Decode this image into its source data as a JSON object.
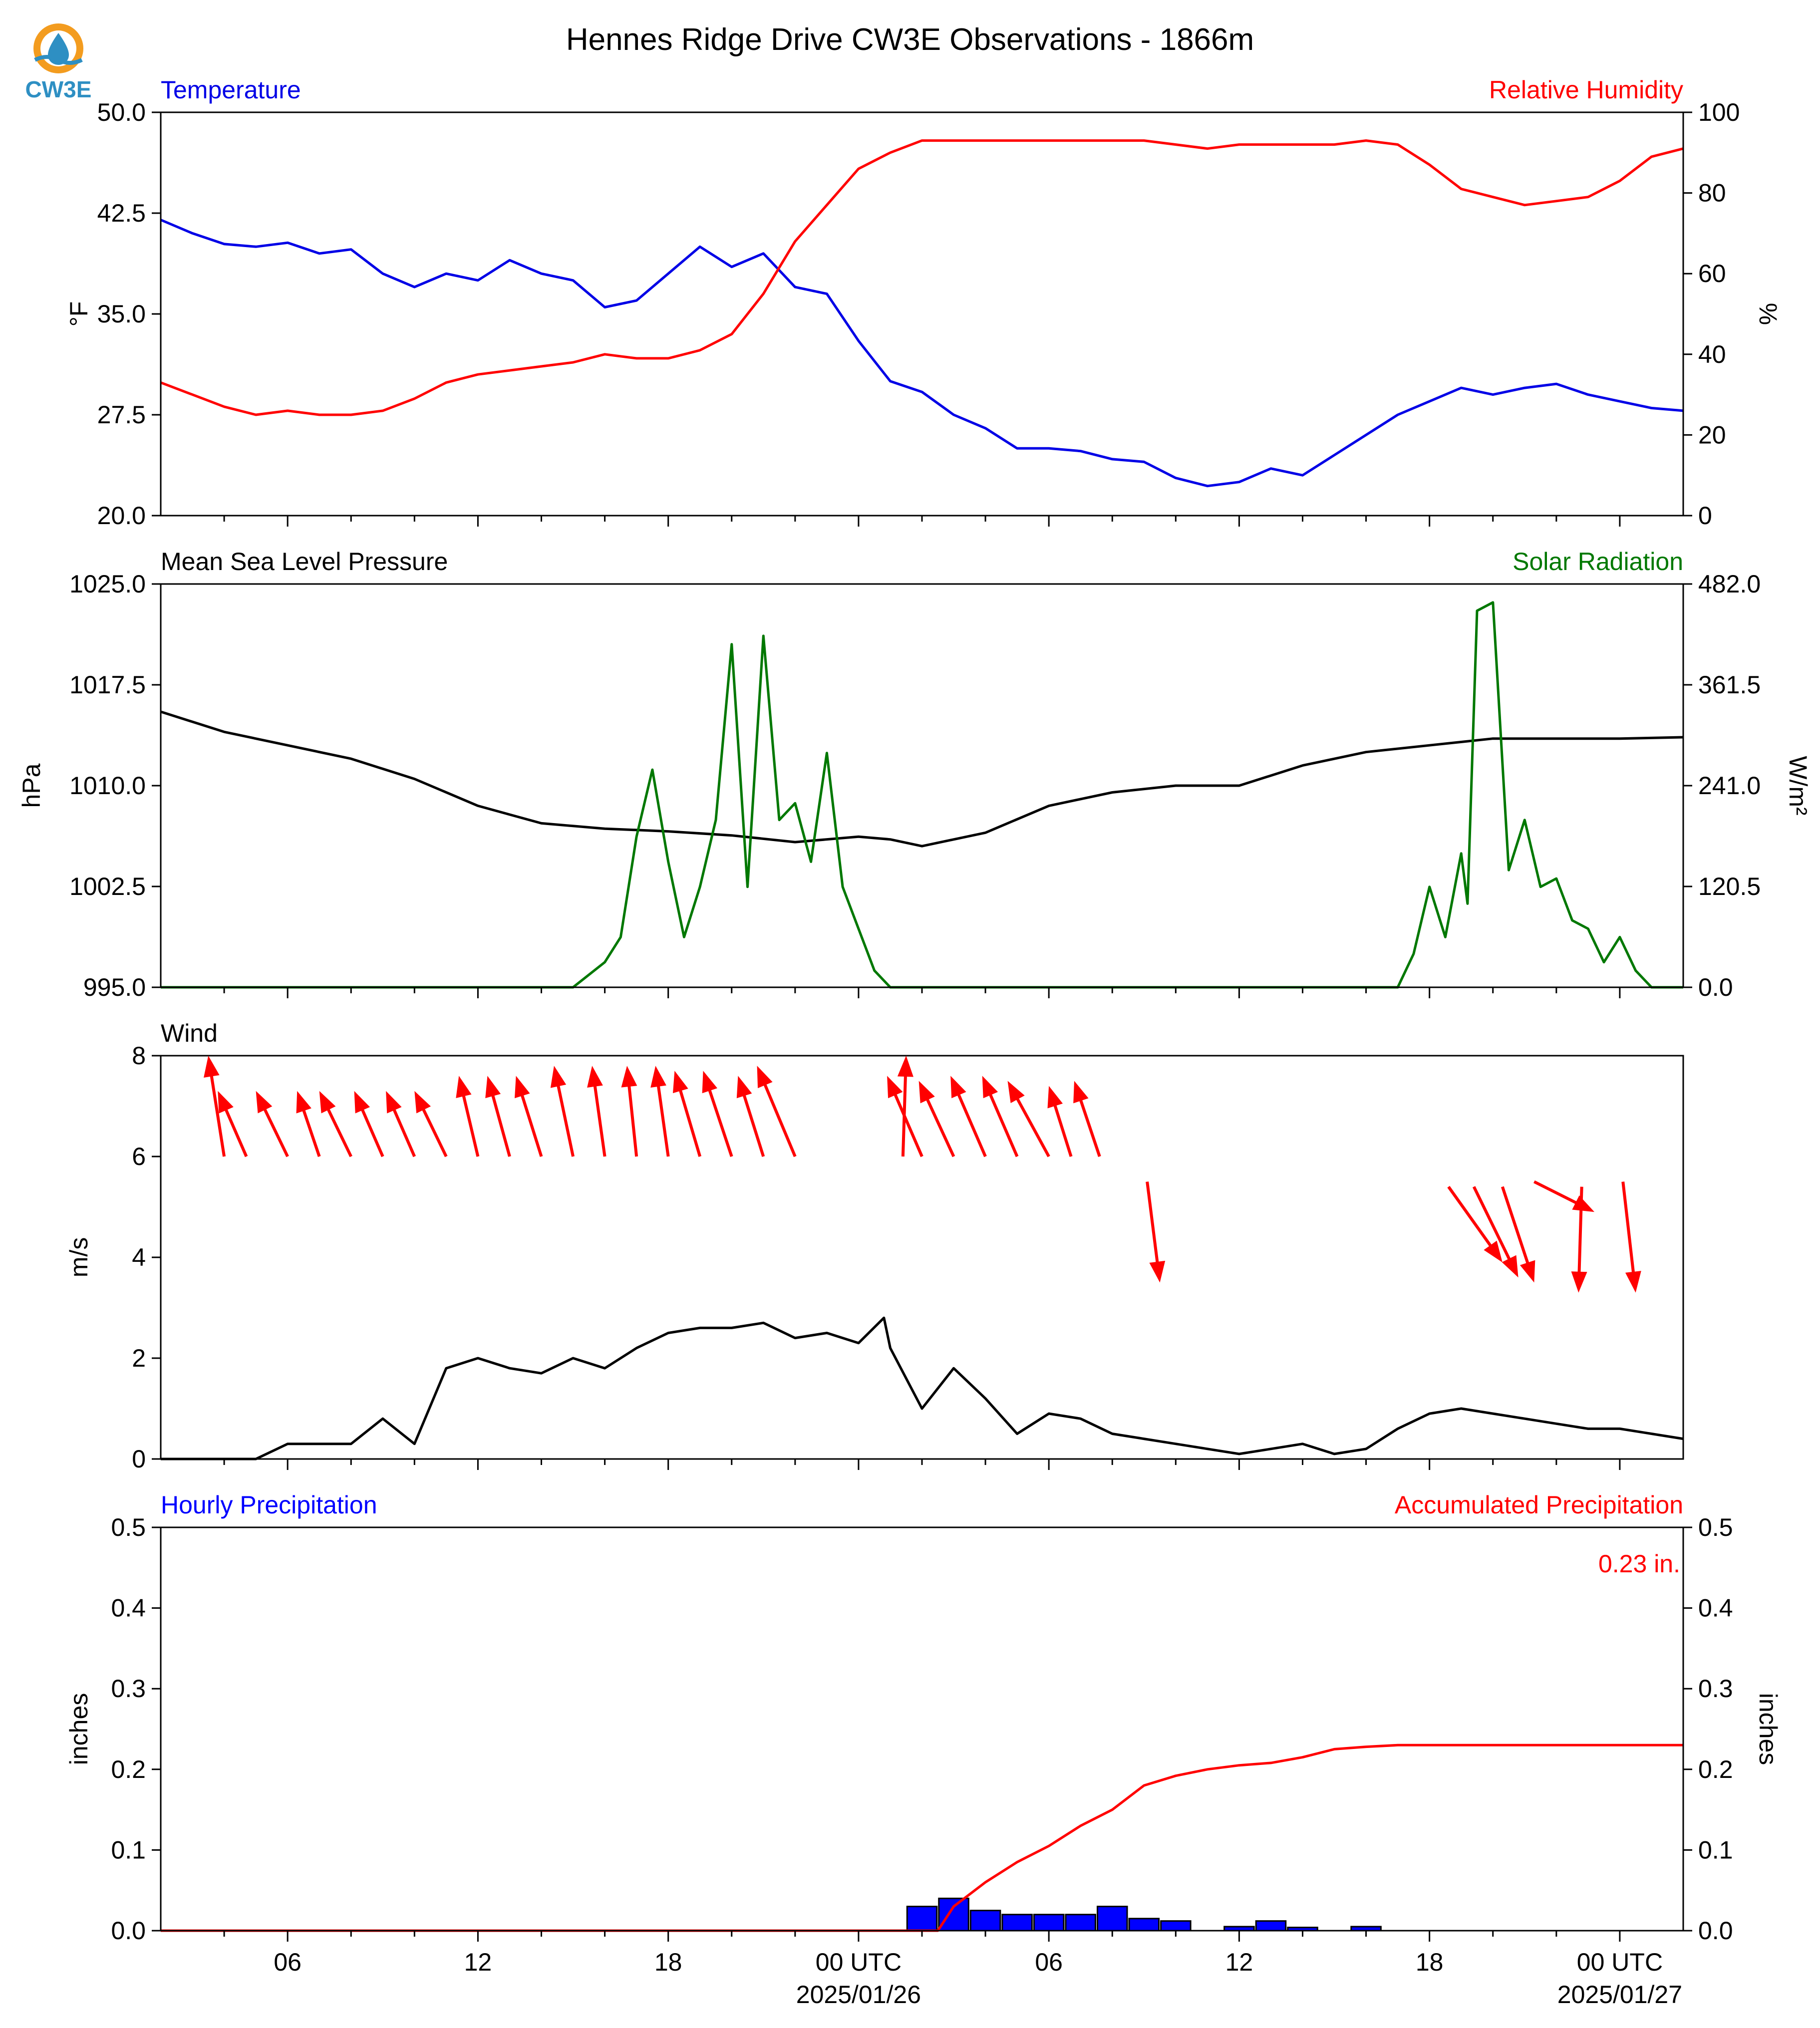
{
  "title": "Hennes Ridge Drive CW3E Observations - 1866m",
  "logo": {
    "text": "CW3E",
    "colors": {
      "ring": "#f39c1f",
      "drop": "#2e8fc3",
      "text": "#2e8fc3"
    }
  },
  "x_axis": {
    "range_hours": [
      -22,
      26
    ],
    "ticks": [
      {
        "hour": -18,
        "label": "06",
        "label2": ""
      },
      {
        "hour": -12,
        "label": "12",
        "label2": ""
      },
      {
        "hour": -6,
        "label": "18",
        "label2": ""
      },
      {
        "hour": 0,
        "label": "00 UTC",
        "label2": "2025/01/26"
      },
      {
        "hour": 6,
        "label": "06",
        "label2": ""
      },
      {
        "hour": 12,
        "label": "12",
        "label2": ""
      },
      {
        "hour": 18,
        "label": "18",
        "label2": ""
      },
      {
        "hour": 24,
        "label": "00 UTC",
        "label2": "2025/01/27"
      }
    ]
  },
  "colors": {
    "temperature": "#0000e6",
    "humidity": "#ff0000",
    "pressure": "#000000",
    "solar": "#007800",
    "wind": "#000000",
    "arrows": "#ff0000",
    "hourly": "#0000ff",
    "accum": "#ff0000"
  },
  "chart_data": [
    {
      "type": "line",
      "left_label": "Temperature",
      "right_label": "Relative Humidity",
      "ylabel_left": "°F",
      "ylabel_right": "%",
      "ylim_left": [
        20.0,
        50.0
      ],
      "ylim_right": [
        0,
        100
      ],
      "yticks_left": [
        "20.0",
        "27.5",
        "35.0",
        "42.5",
        "50.0"
      ],
      "yticks_right": [
        "0",
        "20",
        "40",
        "60",
        "80",
        "100"
      ],
      "series": [
        {
          "name": "Temperature",
          "axis": "left",
          "x": [
            -22,
            -21,
            -20,
            -19,
            -18,
            -17,
            -16,
            -15,
            -14,
            -13,
            -12,
            -11,
            -10,
            -9,
            -8,
            -7,
            -6,
            -5,
            -4,
            -3,
            -2,
            -1,
            0,
            1,
            2,
            3,
            4,
            5,
            6,
            7,
            8,
            9,
            10,
            11,
            12,
            13,
            14,
            15,
            16,
            17,
            18,
            19,
            20,
            21,
            22,
            23,
            24,
            25,
            26
          ],
          "y": [
            42,
            41,
            40.2,
            40,
            40.3,
            39.5,
            39.8,
            38,
            37,
            38,
            37.5,
            39,
            38,
            37.5,
            35.5,
            36,
            38,
            40,
            38.5,
            39.5,
            37,
            36.5,
            33,
            30,
            29.2,
            27.5,
            26.5,
            25,
            25,
            24.8,
            24.2,
            24,
            22.8,
            22.2,
            22.5,
            23.5,
            23,
            24.5,
            26,
            27.5,
            28.5,
            29.5,
            29,
            29.5,
            29.8,
            29,
            28.5,
            28,
            27.8
          ]
        },
        {
          "name": "Relative Humidity",
          "axis": "right",
          "x": [
            -22,
            -21,
            -20,
            -19,
            -18,
            -17,
            -16,
            -15,
            -14,
            -13,
            -12,
            -11,
            -10,
            -9,
            -8,
            -7,
            -6,
            -5,
            -4,
            -3,
            -2,
            -1,
            0,
            1,
            2,
            3,
            4,
            5,
            6,
            7,
            8,
            9,
            10,
            11,
            12,
            13,
            14,
            15,
            16,
            17,
            18,
            19,
            20,
            21,
            22,
            23,
            24,
            25,
            26
          ],
          "y": [
            33,
            30,
            27,
            25,
            26,
            25,
            25,
            26,
            29,
            33,
            35,
            36,
            37,
            38,
            40,
            39,
            39,
            41,
            45,
            55,
            68,
            77,
            86,
            90,
            93,
            93,
            93,
            93,
            93,
            93,
            93,
            93,
            92,
            91,
            92,
            92,
            92,
            92,
            93,
            92,
            87,
            81,
            79,
            77,
            78,
            79,
            83,
            89,
            91
          ]
        }
      ]
    },
    {
      "type": "line",
      "left_label": "Mean Sea Level Pressure",
      "right_label": "Solar Radiation",
      "ylabel_left": "hPa",
      "ylabel_right": "W/m²",
      "ylim_left": [
        995.0,
        1025.0
      ],
      "ylim_right": [
        0.0,
        482.0
      ],
      "yticks_left": [
        "995.0",
        "1002.5",
        "1010.0",
        "1017.5",
        "1025.0"
      ],
      "yticks_right": [
        "0.0",
        "120.5",
        "241.0",
        "361.5",
        "482.0"
      ],
      "series": [
        {
          "name": "Mean Sea Level Pressure",
          "axis": "left",
          "x": [
            -22,
            -20,
            -18,
            -16,
            -14,
            -12,
            -10,
            -8,
            -6,
            -4,
            -2,
            0,
            1,
            2,
            4,
            6,
            8,
            10,
            12,
            14,
            16,
            18,
            20,
            22,
            24,
            26
          ],
          "y": [
            1015.5,
            1014,
            1013,
            1012,
            1010.5,
            1008.5,
            1007.2,
            1006.8,
            1006.6,
            1006.3,
            1005.8,
            1006.2,
            1006,
            1005.5,
            1006.5,
            1008.5,
            1009.5,
            1010,
            1010,
            1011.5,
            1012.5,
            1013,
            1013.5,
            1013.5,
            1013.5,
            1013.6
          ]
        },
        {
          "name": "Solar Radiation",
          "axis": "right",
          "x": [
            -22,
            -11,
            -9,
            -8,
            -7.5,
            -7,
            -6.5,
            -6,
            -5.5,
            -5,
            -4.5,
            -4,
            -3.5,
            -3,
            -2.5,
            -2,
            -1.5,
            -1,
            -0.5,
            0,
            0.5,
            1,
            16,
            17,
            17.5,
            18,
            18.5,
            19,
            19.2,
            19.5,
            20,
            20.5,
            21,
            21.5,
            22,
            22.5,
            23,
            23.5,
            24,
            24.5,
            25,
            26
          ],
          "y": [
            0,
            0,
            0,
            30,
            60,
            180,
            260,
            150,
            60,
            120,
            200,
            410,
            120,
            420,
            200,
            220,
            150,
            280,
            120,
            70,
            20,
            0,
            0,
            0,
            40,
            120,
            60,
            160,
            100,
            450,
            460,
            140,
            200,
            120,
            130,
            80,
            70,
            30,
            60,
            20,
            0,
            0
          ]
        }
      ]
    },
    {
      "type": "line",
      "left_label": "Wind",
      "ylabel_left": "m/s",
      "ylim_left": [
        0,
        8
      ],
      "yticks_left": [
        "0",
        "2",
        "4",
        "6",
        "8"
      ],
      "series": [
        {
          "name": "Wind",
          "axis": "left",
          "x": [
            -22,
            -19,
            -18,
            -16,
            -15,
            -14,
            -13,
            -12,
            -11,
            -10,
            -9,
            -8,
            -7,
            -6,
            -5,
            -4,
            -3,
            -2,
            -1,
            0,
            0.8,
            1,
            2,
            3,
            4,
            5,
            6,
            7,
            8,
            9,
            10,
            11,
            12,
            13,
            14,
            15,
            16,
            17,
            18,
            19,
            20,
            21,
            22,
            23,
            24,
            25,
            26
          ],
          "y": [
            0,
            0,
            0.3,
            0.3,
            0.8,
            0.3,
            1.8,
            2,
            1.8,
            1.7,
            2,
            1.8,
            2.2,
            2.5,
            2.6,
            2.6,
            2.7,
            2.4,
            2.5,
            2.3,
            2.8,
            2.2,
            1,
            1.8,
            1.2,
            0.5,
            0.9,
            0.8,
            0.5,
            0.4,
            0.3,
            0.2,
            0.1,
            0.2,
            0.3,
            0.1,
            0.2,
            0.6,
            0.9,
            1,
            0.9,
            0.8,
            0.7,
            0.6,
            0.6,
            0.5,
            0.4
          ]
        }
      ],
      "arrows_note": "wind direction arrows"
    },
    {
      "type": "bar",
      "left_label": "Hourly Precipitation",
      "right_label": "Accumulated Precipitation",
      "total_label": "0.23 in.",
      "ylabel_left": "inches",
      "ylabel_right": "inches",
      "ylim_left": [
        0.0,
        0.5
      ],
      "ylim_right": [
        0.0,
        0.5
      ],
      "yticks_left": [
        "0.0",
        "0.1",
        "0.2",
        "0.3",
        "0.4",
        "0.5"
      ],
      "yticks_right": [
        "0.0",
        "0.1",
        "0.2",
        "0.3",
        "0.4",
        "0.5"
      ],
      "series": [
        {
          "name": "Hourly Precipitation",
          "axis": "left",
          "x": [
            2,
            3,
            4,
            5,
            6,
            7,
            8,
            9,
            10,
            12,
            13,
            14,
            16
          ],
          "y": [
            0.03,
            0.04,
            0.025,
            0.02,
            0.02,
            0.02,
            0.03,
            0.015,
            0.012,
            0.005,
            0.012,
            0.004,
            0.005
          ]
        },
        {
          "name": "Accumulated Precipitation",
          "axis": "right",
          "x": [
            -22,
            2,
            2.5,
            3,
            4,
            5,
            6,
            7,
            8,
            9,
            10,
            11,
            12,
            13,
            14,
            15,
            16,
            17,
            18,
            20,
            22,
            24,
            26
          ],
          "y": [
            0,
            0,
            0,
            0.03,
            0.06,
            0.085,
            0.105,
            0.13,
            0.15,
            0.18,
            0.192,
            0.2,
            0.205,
            0.208,
            0.215,
            0.225,
            0.228,
            0.23,
            0.23,
            0.23,
            0.23,
            0.23,
            0.23
          ]
        }
      ]
    }
  ]
}
